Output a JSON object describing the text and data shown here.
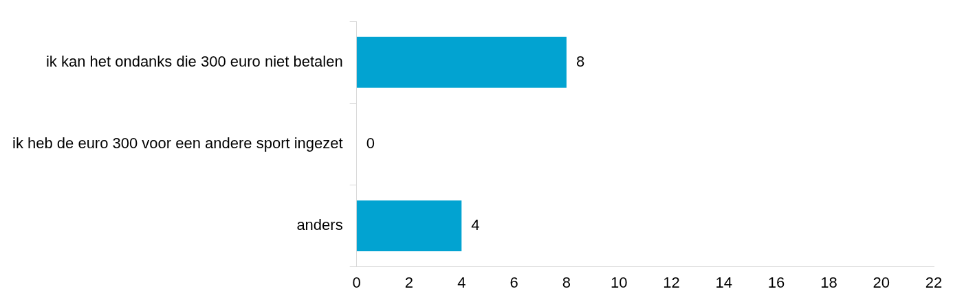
{
  "chart_data": {
    "type": "bar",
    "orientation": "horizontal",
    "categories": [
      "ik kan het ondanks die 300 euro niet betalen",
      "ik heb de euro 300 voor een andere sport ingezet",
      "anders"
    ],
    "values": [
      8,
      0,
      4
    ],
    "color": "#02a3d1",
    "xlim": [
      0,
      22
    ],
    "xticks": [
      0,
      2,
      4,
      6,
      8,
      10,
      12,
      14,
      16,
      18,
      20,
      22
    ],
    "data_labels": true,
    "grid": false,
    "legend": false
  }
}
